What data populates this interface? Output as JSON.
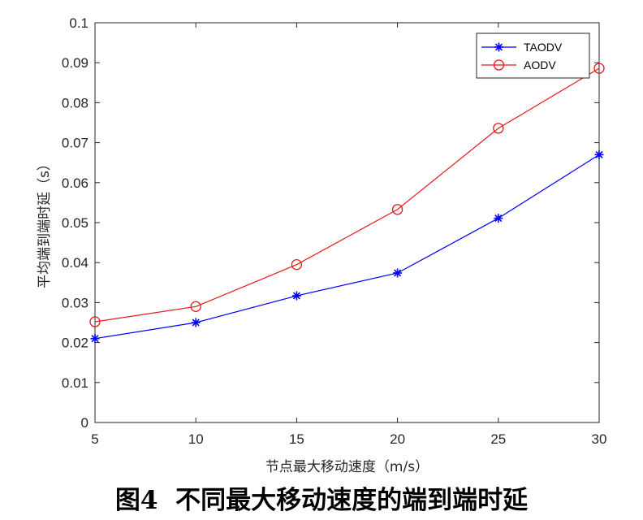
{
  "chart_data": {
    "type": "line",
    "xlabel": "节点最大移动速度（m/s）",
    "ylabel": "平均端到端时延（s）",
    "xlim": [
      5,
      30
    ],
    "ylim": [
      0,
      0.1
    ],
    "x_ticks": [
      5,
      10,
      15,
      20,
      25,
      30
    ],
    "x_tick_labels": [
      "5",
      "10",
      "15",
      "20",
      "25",
      "30"
    ],
    "y_ticks": [
      0,
      0.01,
      0.02,
      0.03,
      0.04,
      0.05,
      0.06,
      0.07,
      0.08,
      0.09,
      0.1
    ],
    "y_tick_labels": [
      "0",
      "0.01",
      "0.02",
      "0.03",
      "0.04",
      "0.05",
      "0.06",
      "0.07",
      "0.08",
      "0.09",
      "0.1"
    ],
    "grid": false,
    "legend_position": "top-right",
    "series": [
      {
        "name": "TAODV",
        "color": "#0000ff",
        "marker": "asterisk",
        "x": [
          5,
          10,
          15,
          20,
          25,
          30
        ],
        "y": [
          0.021,
          0.025,
          0.0317,
          0.0374,
          0.0511,
          0.067
        ]
      },
      {
        "name": "AODV",
        "color": "#e8161a",
        "marker": "circle",
        "x": [
          5,
          10,
          15,
          20,
          25,
          30
        ],
        "y": [
          0.0252,
          0.029,
          0.0395,
          0.0533,
          0.0736,
          0.0886
        ]
      }
    ]
  },
  "caption": {
    "figure_number": "图4",
    "text": "不同最大移动速度的端到端时延"
  }
}
